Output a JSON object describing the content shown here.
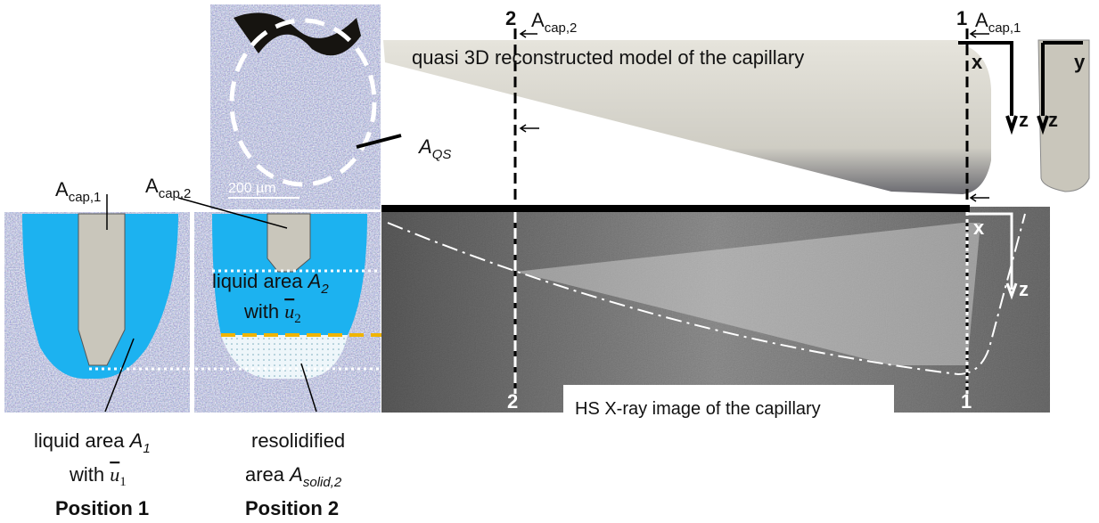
{
  "figure": {
    "top_section_2": "2",
    "top_acap_2": {
      "base": "A",
      "sub": "cap,2"
    },
    "top_section_1": "1",
    "top_acap_1": {
      "base": "A",
      "sub": "cap,1"
    },
    "model_title": "quasi 3D reconstructed model of the capillary",
    "model_axes": {
      "x": "x",
      "z": "z"
    },
    "side_axes": {
      "y": "y",
      "z": "z"
    },
    "aqs": {
      "base": "A",
      "sub": "QS"
    },
    "scale_bar": "200 µm",
    "position1_acap": {
      "base": "A",
      "sub": "cap,1"
    },
    "position2_acap": {
      "base": "A",
      "sub": "cap,2"
    },
    "liquid_area_2": {
      "text": "liquid area",
      "base": "A",
      "sub": "2"
    },
    "with_u2": {
      "text": "with",
      "symbol": "u",
      "sub": "2"
    },
    "xray_axes": {
      "x": "x",
      "z": "z"
    },
    "bottom_section_2": "2",
    "bottom_section_1": "1",
    "xray_title": "HS X-ray image of the capillary",
    "liquid_area_1": {
      "text": "liquid area",
      "base": "A",
      "sub": "1"
    },
    "with_u1": {
      "text": "with",
      "symbol": "u",
      "sub": "1"
    },
    "resolidified": "resolidified",
    "solid_area_2": {
      "text": "area",
      "base": "A",
      "sub": "solid,2"
    },
    "position_1": "Position 1",
    "position_2": "Position 2"
  }
}
